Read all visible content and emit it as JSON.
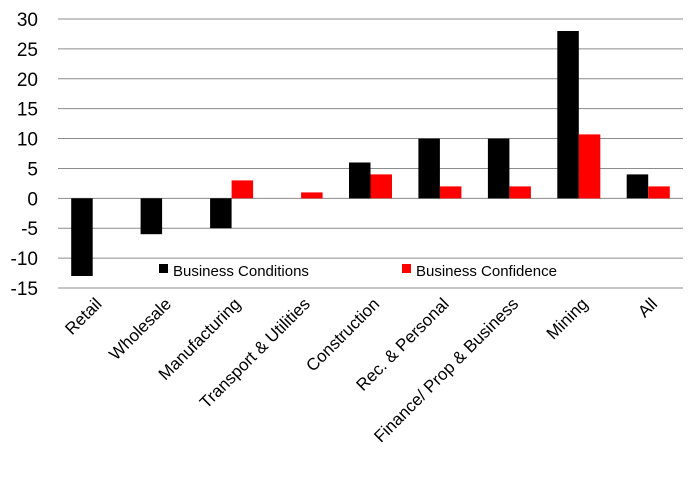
{
  "chart_data": {
    "type": "bar",
    "categories": [
      "Retail",
      "Wholesale",
      "Manufacturing",
      "Transport & Utilities",
      "Construction",
      "Rec. & Personal",
      "Finance/ Prop & Business",
      "Mining",
      "All"
    ],
    "series": [
      {
        "name": "Business Conditions",
        "color": "#000000",
        "values": [
          -13,
          -6,
          -5,
          0,
          6,
          10,
          10,
          28,
          4
        ]
      },
      {
        "name": "Business Confidence",
        "color": "#ff0000",
        "values": [
          0,
          0,
          3,
          1,
          4,
          2,
          2,
          10.7,
          2
        ]
      }
    ],
    "ylim": [
      -15,
      30
    ],
    "yticks": [
      30,
      25,
      20,
      15,
      10,
      5,
      0,
      -5,
      -10,
      -15
    ],
    "grid": true,
    "legend_position": "inside-bottom"
  }
}
